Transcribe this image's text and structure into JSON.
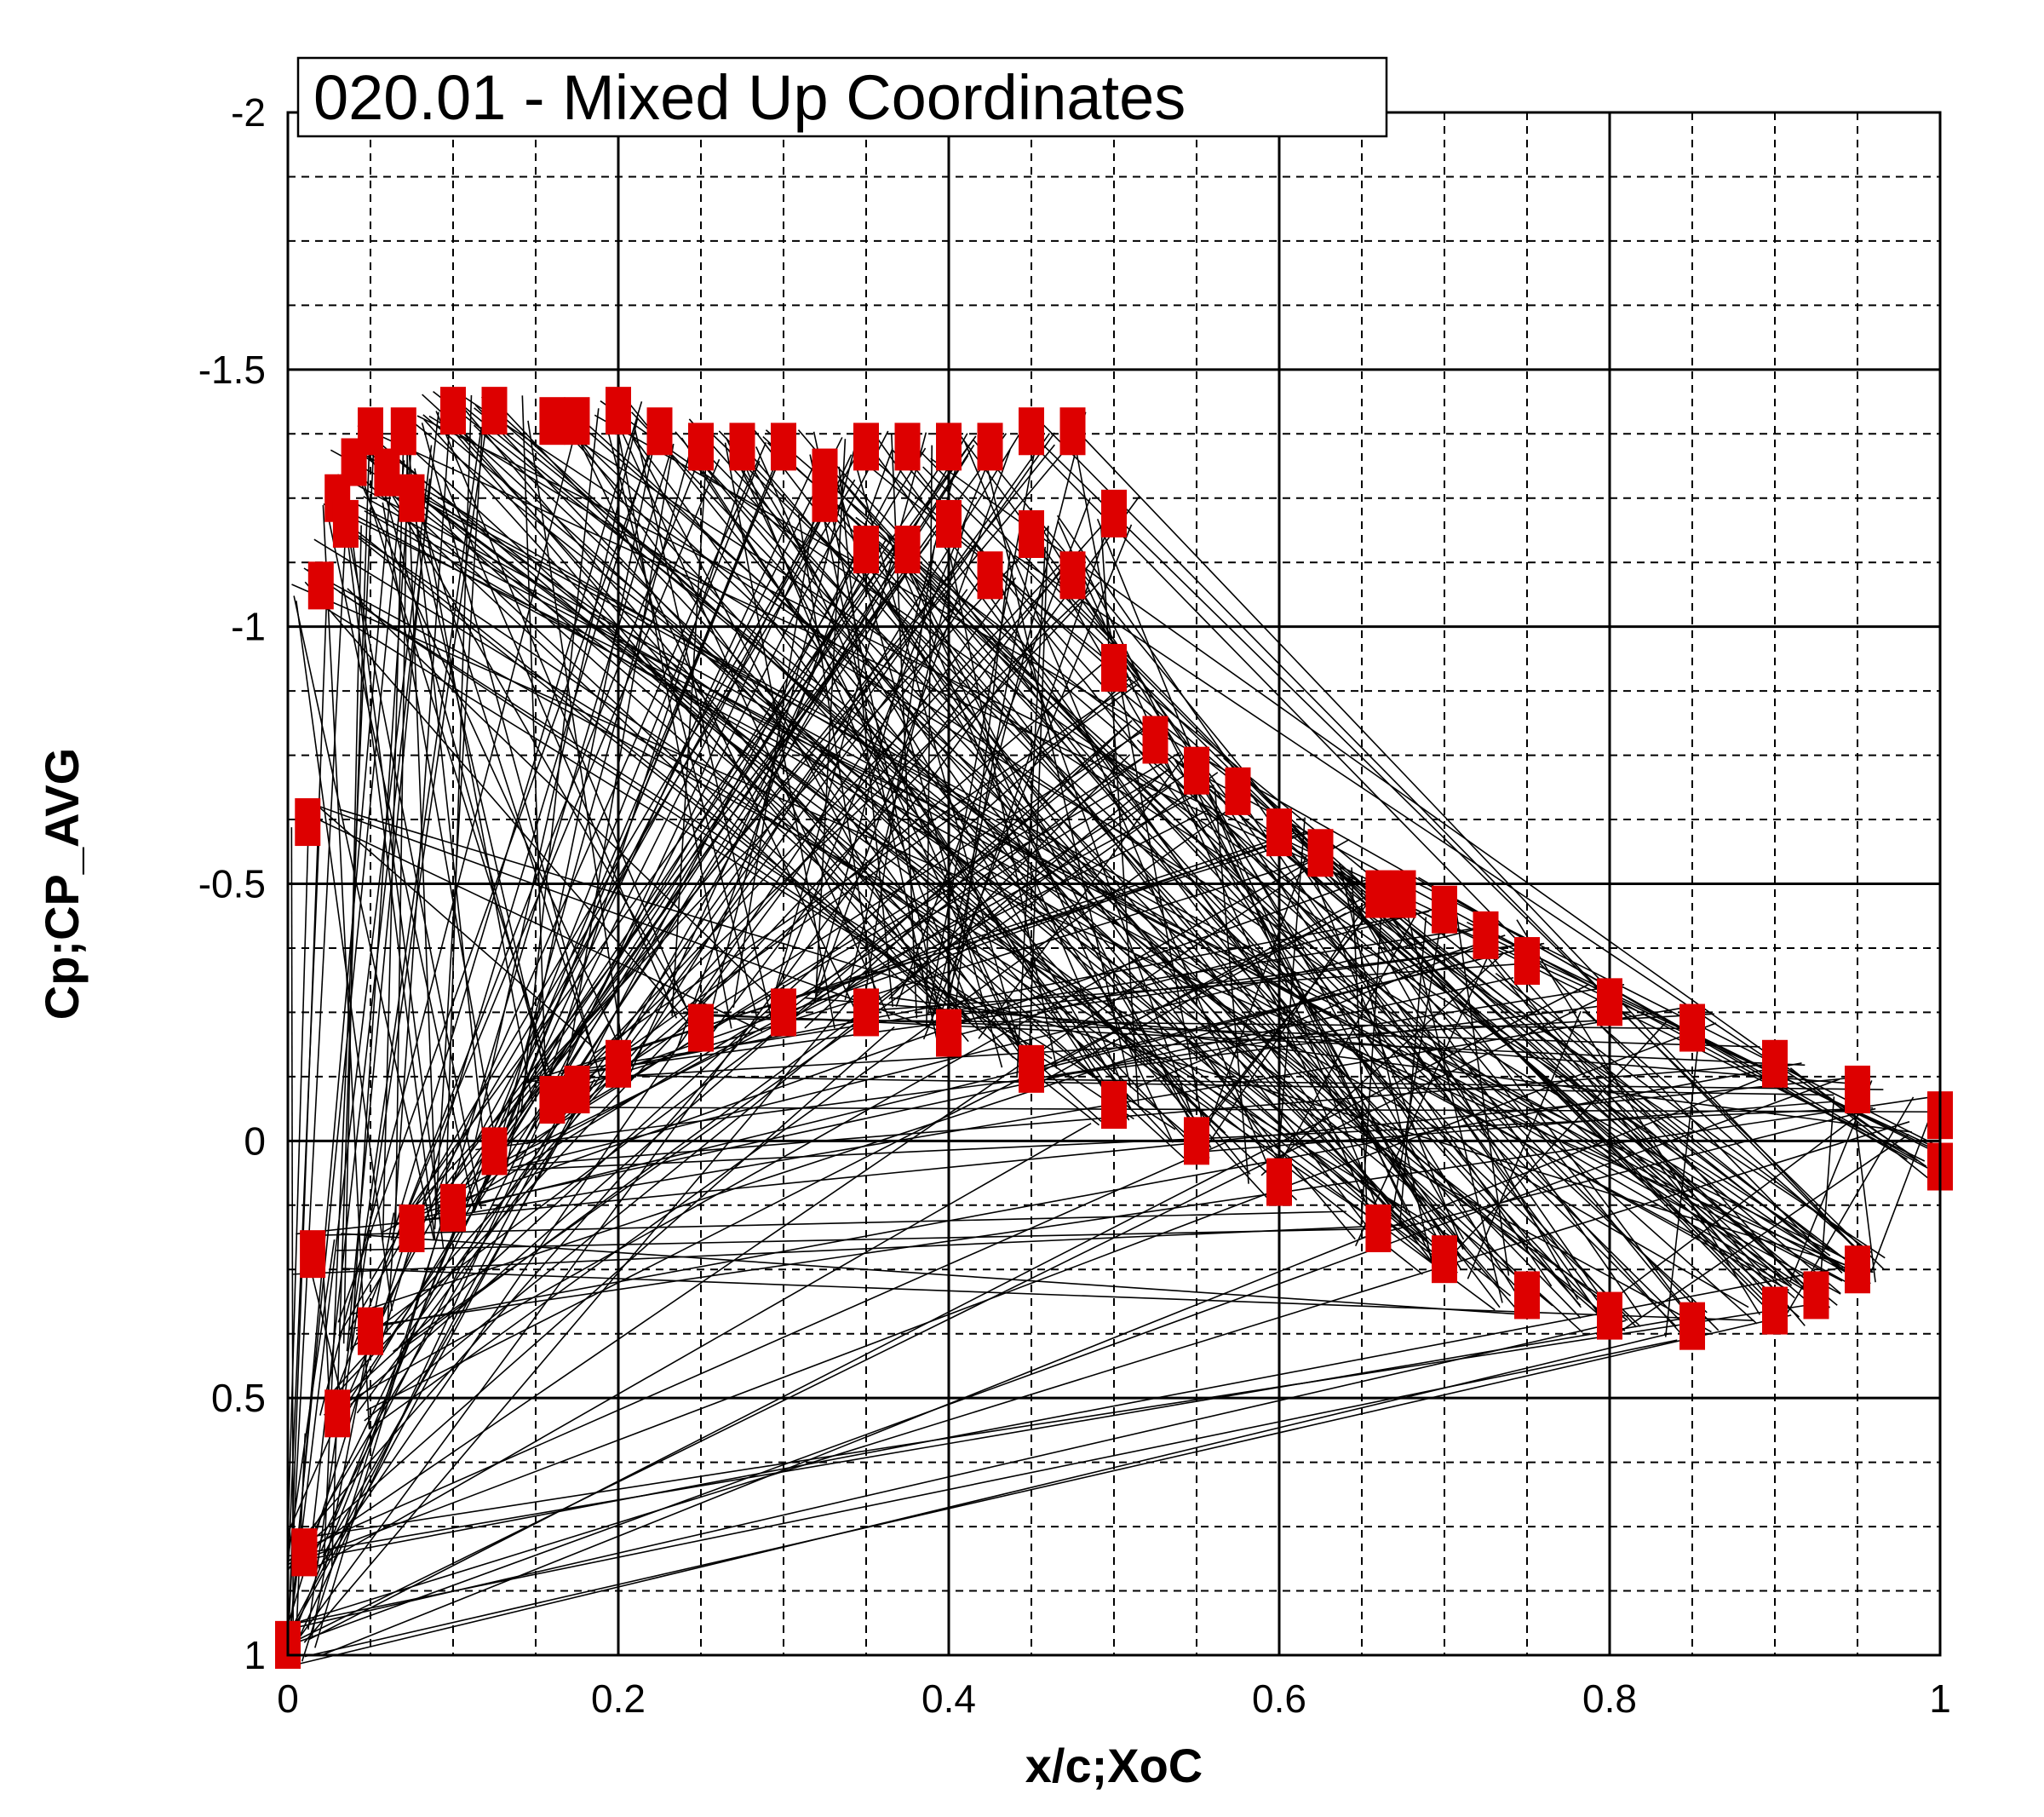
{
  "chart_data": {
    "type": "scatter",
    "title": "020.01 - Mixed Up Coordinates",
    "xlabel": "x/c;XoC",
    "ylabel": "Cp;CP_AVG",
    "xlim": [
      0,
      1
    ],
    "ylim": [
      1,
      -2
    ],
    "y_axis_inverted": true,
    "grid": true,
    "x_ticks": [
      "0",
      "0.2",
      "0.4",
      "0.6",
      "0.8",
      "1"
    ],
    "x_tick_values": [
      0,
      0.2,
      0.4,
      0.6,
      0.8,
      1
    ],
    "y_ticks": [
      "-2",
      "-1.5",
      "-1",
      "-0.5",
      "0",
      "0.5",
      "1"
    ],
    "y_tick_values": [
      -2,
      -1.5,
      -1,
      -0.5,
      0,
      0.5,
      1
    ],
    "colors": {
      "markers": "#dd0000",
      "lines": "#000000"
    },
    "series": [
      {
        "style": "markers",
        "color": "#dd0000",
        "x": [
          0.0,
          0.01,
          0.012,
          0.015,
          0.02,
          0.03,
          0.035,
          0.04,
          0.05,
          0.06,
          0.07,
          0.075,
          0.1,
          0.125,
          0.16,
          0.175,
          0.2,
          0.225,
          0.25,
          0.275,
          0.3,
          0.325,
          0.35,
          0.375,
          0.4,
          0.425,
          0.45,
          0.475,
          0.5,
          0.375,
          0.325,
          0.35,
          0.4,
          0.425,
          0.45,
          0.475,
          0.5,
          0.525,
          0.55,
          0.575,
          0.6,
          0.625,
          0.66,
          0.675,
          0.7,
          0.725,
          0.75,
          0.8,
          0.85,
          0.9,
          0.95,
          1.0
        ],
        "y": [
          0.98,
          0.8,
          -0.62,
          0.22,
          -1.08,
          -1.25,
          -1.2,
          -1.32,
          -1.38,
          -1.3,
          -1.38,
          -1.25,
          -1.42,
          -1.42,
          -1.4,
          -1.4,
          -1.42,
          -1.38,
          -1.35,
          -1.35,
          -1.35,
          -1.3,
          -1.35,
          -1.35,
          -1.35,
          -1.35,
          -1.38,
          -1.38,
          -1.22,
          -1.15,
          -1.25,
          -1.15,
          -1.2,
          -1.1,
          -1.18,
          -1.1,
          -0.92,
          -0.78,
          -0.72,
          -0.68,
          -0.6,
          -0.56,
          -0.48,
          -0.48,
          -0.45,
          -0.4,
          -0.35,
          -0.27,
          -0.22,
          -0.15,
          -0.1,
          -0.05
        ]
      },
      {
        "style": "markers",
        "color": "#dd0000",
        "x": [
          0.0,
          0.01,
          0.03,
          0.05,
          0.075,
          0.1,
          0.125,
          0.16,
          0.175,
          0.2,
          0.25,
          0.3,
          0.35,
          0.4,
          0.45,
          0.5,
          0.55,
          0.6,
          0.66,
          0.7,
          0.75,
          0.8,
          0.85,
          0.9,
          0.925,
          0.95,
          1.0
        ],
        "y": [
          0.98,
          0.8,
          0.53,
          0.37,
          0.17,
          0.13,
          0.02,
          -0.08,
          -0.1,
          -0.15,
          -0.22,
          -0.25,
          -0.25,
          -0.21,
          -0.14,
          -0.07,
          0.0,
          0.08,
          0.17,
          0.23,
          0.3,
          0.34,
          0.36,
          0.33,
          0.3,
          0.25,
          0.05
        ]
      }
    ]
  }
}
